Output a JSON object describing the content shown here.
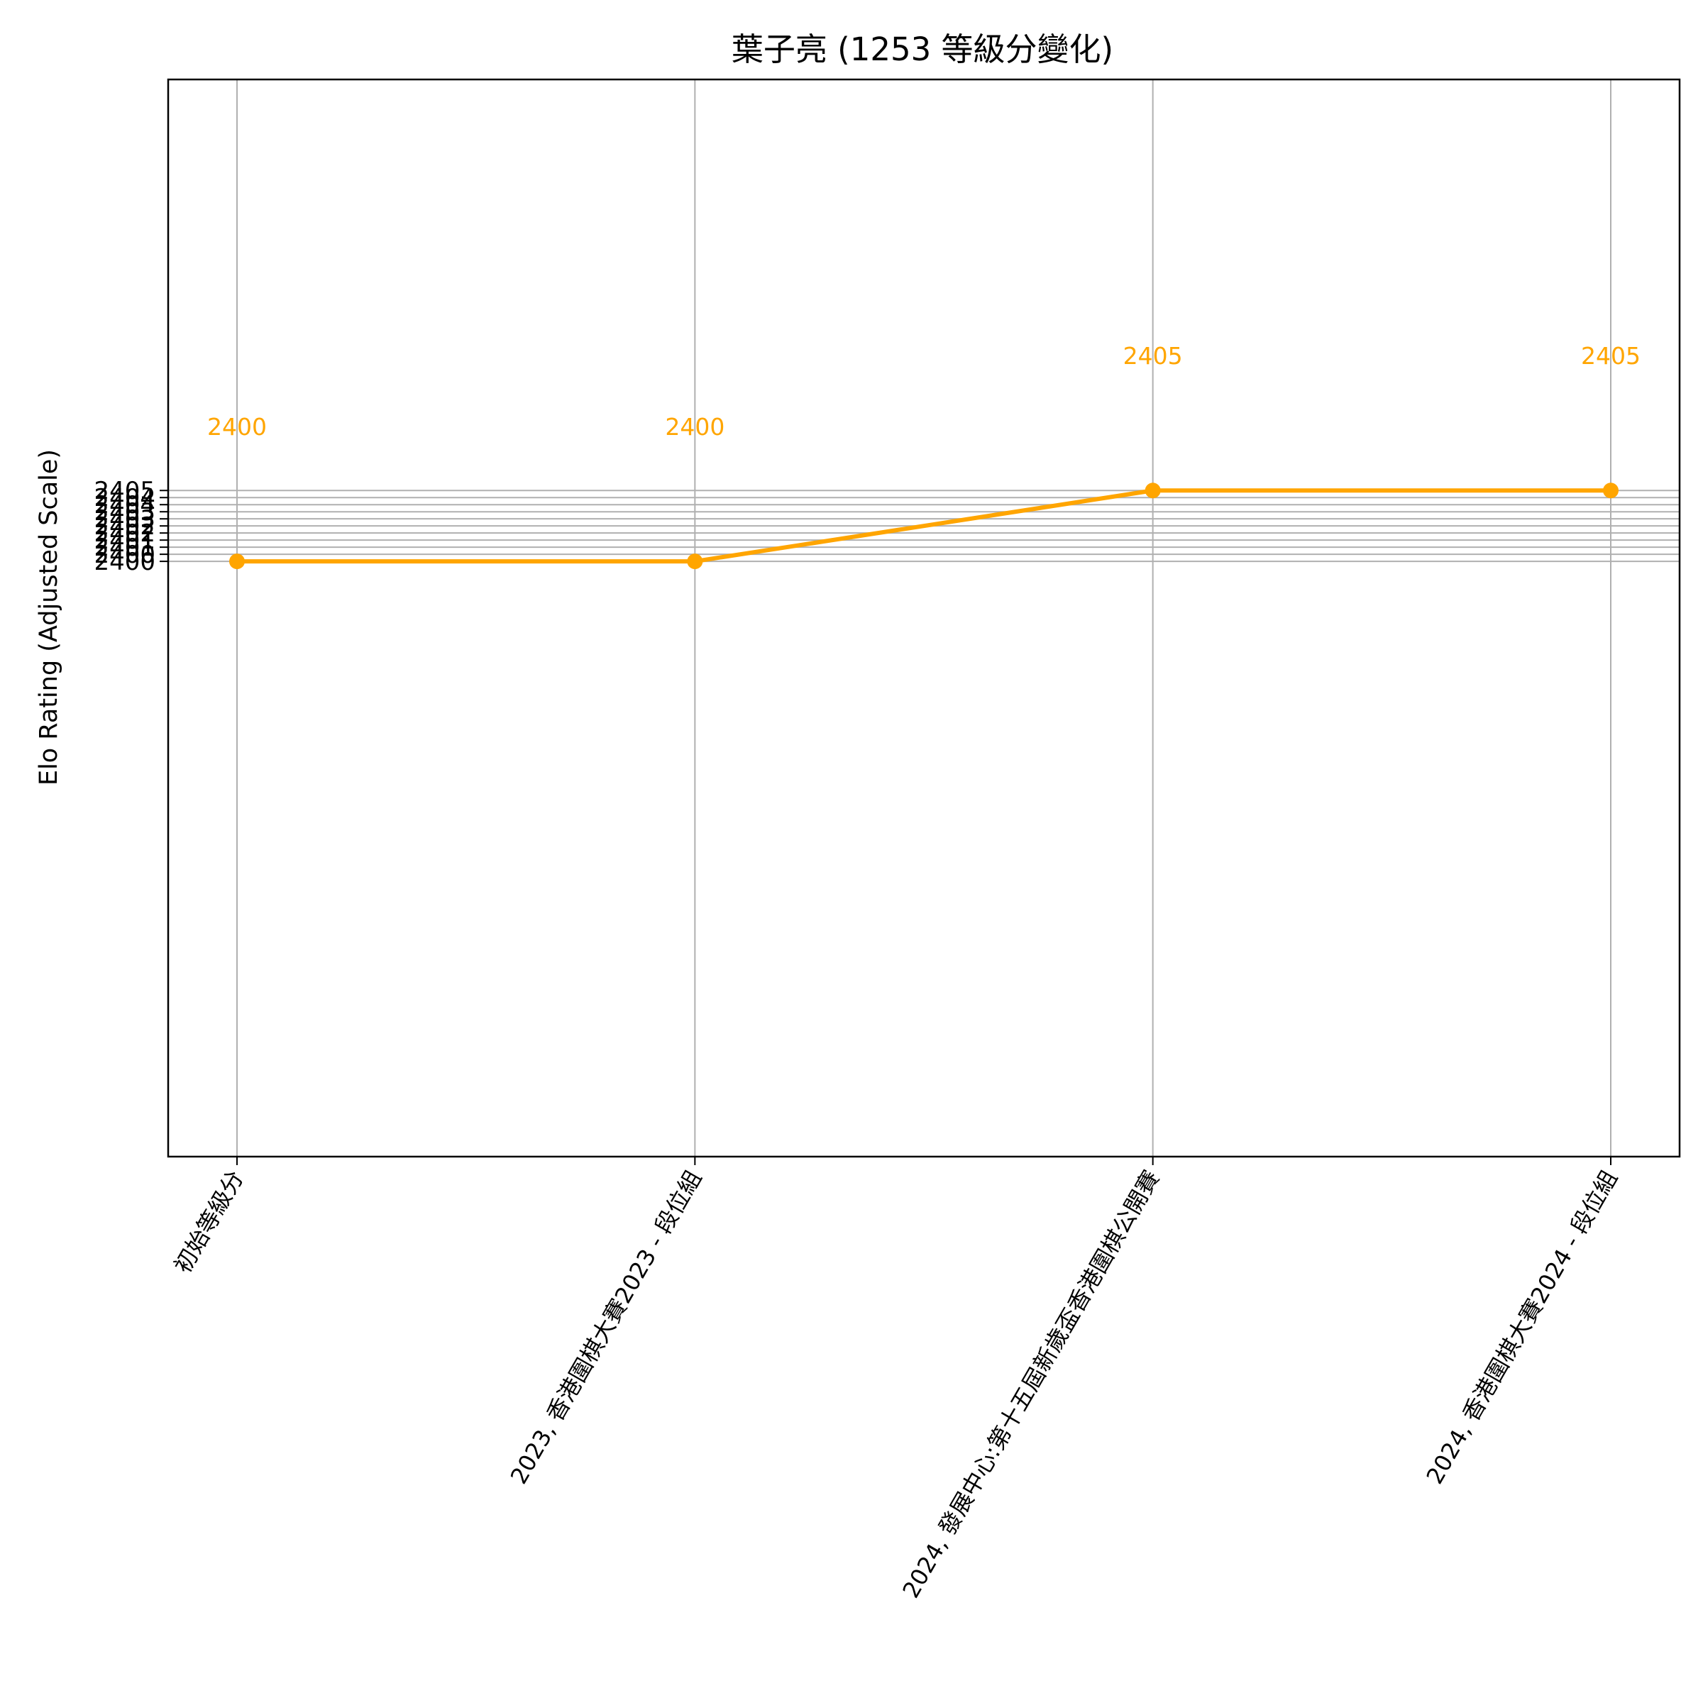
{
  "chart_data": {
    "type": "line",
    "title": "葉子亮 (1253 等級分變化)",
    "xlabel": "",
    "ylabel": "Elo Rating (Adjusted Scale)",
    "categories": [
      "初始等級分",
      "2023, 香港圍棋大賽2023 - 段位組",
      "2024, 發展中心:第十五屆新歲盃香港圍棋公開賽",
      "2024, 香港圍棋大賽2024 - 段位組"
    ],
    "values": [
      2400,
      2400,
      2405,
      2405
    ],
    "data_labels": [
      "2400",
      "2400",
      "2405",
      "2405"
    ],
    "yticks": [
      2400,
      2400.5,
      2401,
      2401.5,
      2402,
      2402.5,
      2403,
      2403.5,
      2404,
      2404.5,
      2405
    ],
    "ytick_labels": [
      "2400",
      "2400",
      "2401",
      "2401",
      "2402",
      "2402",
      "2403",
      "2403",
      "2404",
      "2404",
      "2405"
    ],
    "ylim": [
      2358,
      2434
    ],
    "grid": true,
    "line_color": "#FFA500"
  }
}
